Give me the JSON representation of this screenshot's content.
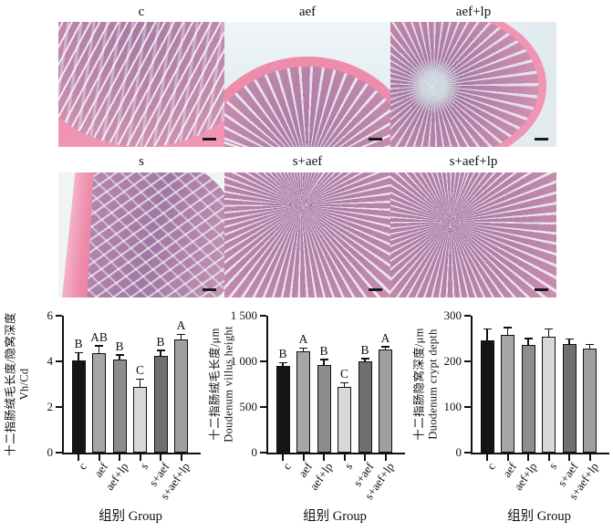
{
  "palette": {
    "bar_colors": [
      "#151515",
      "#a6a6a6",
      "#8d8d8d",
      "#d8d8d8",
      "#6f6f6f",
      "#9f9f9f"
    ],
    "axis_color": "#111111",
    "muscle_pink": "#ee8cab",
    "mucosa_purple": "#a87aa4",
    "background_pale": "#e8f0f4"
  },
  "micrographs": {
    "rows": [
      {
        "panels": [
          {
            "label": "c"
          },
          {
            "label": "aef"
          },
          {
            "label": "aef+lp"
          }
        ]
      },
      {
        "panels": [
          {
            "label": "s"
          },
          {
            "label": "s+aef"
          },
          {
            "label": "s+aef+lp"
          }
        ]
      }
    ]
  },
  "chart_data": [
    {
      "type": "bar",
      "categories": [
        "c",
        "aef",
        "aef+lp",
        "s",
        "s+aef",
        "s+aef+lp"
      ],
      "values": [
        4.05,
        4.35,
        4.1,
        2.9,
        4.25,
        4.95
      ],
      "errors": [
        0.3,
        0.3,
        0.15,
        0.3,
        0.2,
        0.2
      ],
      "sig_letters": [
        "B",
        "AB",
        "B",
        "C",
        "B",
        "A"
      ],
      "ylabel_cn": "十二指肠绒毛长度/隐窝深度",
      "ylabel_en": "Vh/Cd",
      "xlabel": "组别 Group",
      "ylim": [
        0,
        6
      ],
      "yticks": [
        "0",
        "2",
        "4",
        "6"
      ],
      "grid": false,
      "legend": "none"
    },
    {
      "type": "bar",
      "categories": [
        "c",
        "aef",
        "aef+lp",
        "s",
        "s+aef",
        "s+aef+lp"
      ],
      "values": [
        955,
        1110,
        965,
        720,
        1005,
        1135
      ],
      "errors": [
        25,
        30,
        50,
        40,
        20,
        20
      ],
      "sig_letters": [
        "B",
        "A",
        "B",
        "C",
        "B",
        "A"
      ],
      "ylabel_cn": "十二指肠绒毛长度/μm",
      "ylabel_en": "Doudenum villus height",
      "xlabel": "组别 Group",
      "ylim": [
        0,
        1500
      ],
      "yticks": [
        "0",
        "500",
        "1 000",
        "1 500"
      ],
      "grid": false,
      "legend": "none"
    },
    {
      "type": "bar",
      "categories": [
        "c",
        "aef",
        "aef+lp",
        "s",
        "s+aef",
        "s+aef+lp"
      ],
      "values": [
        246,
        258,
        237,
        254,
        239,
        228
      ],
      "errors": [
        24,
        15,
        12,
        16,
        9,
        8
      ],
      "sig_letters": [
        "",
        "",
        "",
        "",
        "",
        ""
      ],
      "ylabel_cn": "十二指肠隐窝深度/μm",
      "ylabel_en": "Duodenum crypt depth",
      "xlabel": "组别 Group",
      "ylim": [
        0,
        300
      ],
      "yticks": [
        "0",
        "100",
        "200",
        "300"
      ],
      "grid": false,
      "legend": "none"
    }
  ]
}
